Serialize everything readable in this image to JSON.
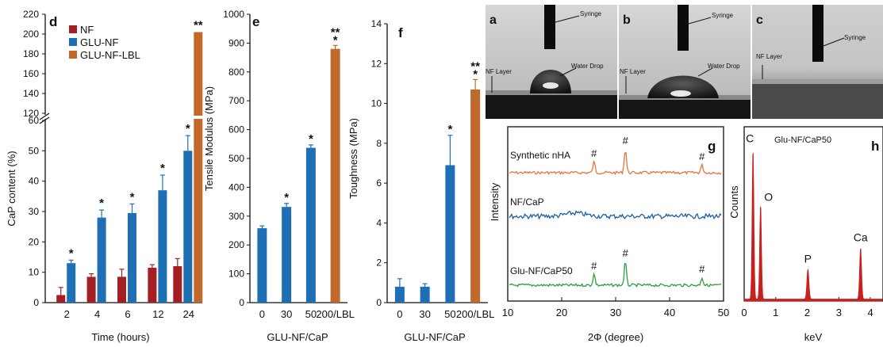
{
  "chart_data": [
    {
      "panel": "d",
      "type": "bar",
      "ylabel": "CaP content (%)",
      "xlabel": "Time (hours)",
      "categories": [
        "2",
        "4",
        "6",
        "12",
        "24"
      ],
      "series": [
        {
          "name": "NF",
          "color": "#a31f24",
          "values": [
            2.5,
            8.5,
            8.5,
            11.5,
            12
          ],
          "errors": [
            2.5,
            1,
            2.5,
            1,
            2.5
          ]
        },
        {
          "name": "GLU-NF",
          "color": "#1f6fb5",
          "values": [
            13,
            28,
            29.5,
            37,
            50
          ],
          "errors": [
            1,
            2.5,
            3,
            5,
            5
          ]
        },
        {
          "name": "GLU-NF-LBL",
          "color": "#c0692a",
          "values": [
            null,
            null,
            null,
            null,
            202
          ]
        }
      ],
      "significance": [
        {
          "category": "2",
          "series": "GLU-NF",
          "mark": "*"
        },
        {
          "category": "4",
          "series": "GLU-NF",
          "mark": "*"
        },
        {
          "category": "6",
          "series": "GLU-NF",
          "mark": "*"
        },
        {
          "category": "12",
          "series": "GLU-NF",
          "mark": "*"
        },
        {
          "category": "24",
          "series": "GLU-NF",
          "mark": "*"
        },
        {
          "category": "24",
          "series": "GLU-NF-LBL",
          "mark": "**"
        }
      ],
      "y_ticks_lower": [
        "0",
        "10",
        "20",
        "30",
        "40",
        "50",
        "60"
      ],
      "y_ticks_upper": [
        "120",
        "140",
        "160",
        "180",
        "200",
        "220"
      ],
      "axis_break": [
        60,
        120
      ],
      "ylim": [
        0,
        220
      ],
      "legend_position": "top-left"
    },
    {
      "panel": "e",
      "type": "bar",
      "ylabel": "Tensile Modulus (MPa)",
      "xlabel": "GLU-NF/CaP",
      "categories": [
        "0",
        "30",
        "50",
        "200/LBL"
      ],
      "values": [
        258,
        332,
        537,
        880
      ],
      "errors": [
        8,
        12,
        10,
        12
      ],
      "colors": [
        "#1f6fb5",
        "#1f6fb5",
        "#1f6fb5",
        "#c0692a"
      ],
      "significance": [
        "",
        "*",
        "*",
        "**"
      ],
      "y_ticks": [
        "0",
        "100",
        "200",
        "300",
        "400",
        "500",
        "600",
        "700",
        "800",
        "900",
        "1000"
      ],
      "ylim": [
        0,
        1000
      ]
    },
    {
      "panel": "f",
      "type": "bar",
      "ylabel": "Toughness (MPa)",
      "xlabel": "GLU-NF/CaP",
      "categories": [
        "0",
        "30",
        "50",
        "200/LBL"
      ],
      "values": [
        0.8,
        0.8,
        6.9,
        10.7
      ],
      "errors": [
        0.4,
        0.15,
        1.5,
        0.5
      ],
      "colors": [
        "#1f6fb5",
        "#1f6fb5",
        "#1f6fb5",
        "#c0692a"
      ],
      "significance": [
        "",
        "",
        "*",
        "**"
      ],
      "y_ticks": [
        "0",
        "2",
        "4",
        "6",
        "8",
        "10",
        "12",
        "14"
      ],
      "ylim": [
        0,
        14
      ]
    },
    {
      "panel": "g",
      "type": "line",
      "xlabel": "2Φ (degree)",
      "ylabel": "Intensity",
      "x_ticks": [
        "10",
        "20",
        "30",
        "40",
        "50"
      ],
      "xlim": [
        10,
        50
      ],
      "series": [
        {
          "name": "Synthetic nHA",
          "color": "#e8743b",
          "peaks": [
            26,
            31.8,
            46
          ]
        },
        {
          "name": "NF/CaP",
          "color": "#1f5ea8",
          "peaks": []
        },
        {
          "name": "Glu-NF/CaP50",
          "color": "#2e9e44",
          "peaks": [
            26,
            31.8,
            46
          ]
        }
      ],
      "peak_mark": "#"
    },
    {
      "panel": "h",
      "type": "line",
      "title": "Glu-NF/CaP50",
      "xlabel": "keV",
      "ylabel": "Counts",
      "x_ticks": [
        "0",
        "1",
        "2",
        "3",
        "4"
      ],
      "xlim": [
        0,
        4.4
      ],
      "color": "#c8201e",
      "peaks": [
        {
          "label": "C",
          "x": 0.28
        },
        {
          "label": "O",
          "x": 0.52
        },
        {
          "label": "P",
          "x": 2.02
        },
        {
          "label": "Ca",
          "x": 3.69
        }
      ]
    }
  ],
  "photos": [
    {
      "panel": "a",
      "syringe_label": "Syringe",
      "layer_label": "NF Layer",
      "drop_label": "Water Drop"
    },
    {
      "panel": "b",
      "syringe_label": "Syringe",
      "layer_label": "NF Layer",
      "drop_label": "Water Drop"
    },
    {
      "panel": "c",
      "syringe_label": "Syringe",
      "layer_label": "NF Layer"
    }
  ]
}
